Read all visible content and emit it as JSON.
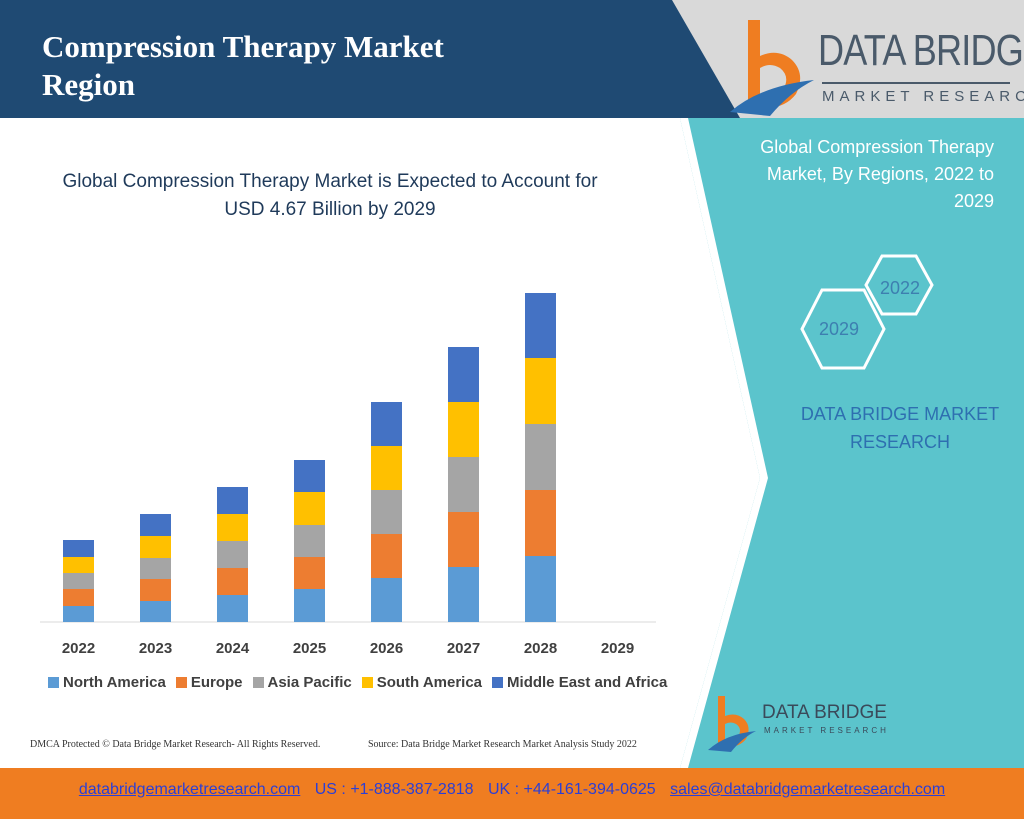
{
  "header": {
    "title_line1": "Compression Therapy Market",
    "title_line2": "Region",
    "logo_name": "DATA BRIDGE",
    "logo_sub": "MARKET RESEARCH"
  },
  "side_panel": {
    "title": "Global Compression Therapy Market, By Regions, 2022 to 2029",
    "hex_top": "2022",
    "hex_bottom": "2029",
    "brand_line1": "DATA BRIDGE MARKET",
    "brand_line2": "RESEARCH",
    "mini_logo_name": "DATA BRIDGE",
    "mini_logo_sub": "MARKET RESEARCH"
  },
  "chart_data": {
    "type": "bar",
    "stacked": true,
    "title_line1": "Global Compression Therapy Market is Expected to Account for",
    "title_line2": "USD 4.67 Billion by 2029",
    "categories": [
      "2022",
      "2023",
      "2024",
      "2025",
      "2026",
      "2027",
      "2028",
      "2029"
    ],
    "series": [
      {
        "name": "North America",
        "color": "#5b9bd5",
        "values": [
          16,
          21,
          27,
          33,
          44,
          55,
          66,
          null
        ]
      },
      {
        "name": "Europe",
        "color": "#ed7d31",
        "values": [
          17,
          22,
          27,
          32,
          44,
          55,
          66,
          null
        ]
      },
      {
        "name": "Asia Pacific",
        "color": "#a5a5a5",
        "values": [
          16,
          21,
          27,
          32,
          44,
          55,
          66,
          null
        ]
      },
      {
        "name": "South America",
        "color": "#ffc000",
        "values": [
          16,
          22,
          27,
          33,
          44,
          55,
          66,
          null
        ]
      },
      {
        "name": "Middle East and Africa",
        "color": "#4472c4",
        "values": [
          17,
          22,
          27,
          32,
          44,
          55,
          65,
          null
        ]
      }
    ],
    "ylim": [
      0,
      330
    ],
    "legend_position": "bottom",
    "grid": false
  },
  "footnotes": {
    "left": "DMCA Protected © Data Bridge Market Research- All Rights Reserved.",
    "right": "Source: Data Bridge Market Research Market Analysis Study 2022"
  },
  "footer": {
    "website": "databridgemarketresearch.com",
    "us_phone": "US : +1-888-387-2818",
    "uk_phone": "UK : +44-161-394-0625",
    "email": "sales@databridgemarketresearch.com"
  },
  "colors": {
    "header_blue": "#1f4a73",
    "teal": "#5bc4cc",
    "footer_orange": "#ef7d21",
    "logo_orange": "#ef7d21",
    "logo_blue": "#2e6fb0"
  }
}
